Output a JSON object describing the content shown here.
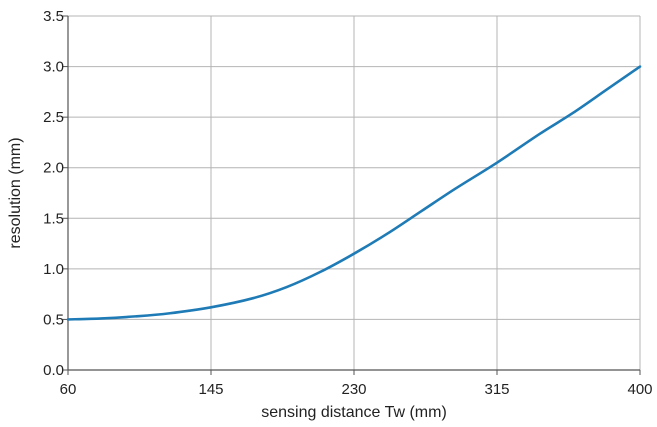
{
  "chart_data": {
    "type": "line",
    "title": "",
    "xlabel": "sensing distance Tw (mm)",
    "ylabel": "resolution (mm)",
    "xlim": [
      60,
      400
    ],
    "ylim": [
      0,
      3.5
    ],
    "x_ticks": [
      60,
      145,
      230,
      315,
      400
    ],
    "x_tick_labels": [
      "60",
      "145",
      "230",
      "315",
      "400"
    ],
    "y_ticks": [
      0,
      0.5,
      1,
      1.5,
      2,
      2.5,
      3,
      3.5
    ],
    "y_tick_labels": [
      "0.0",
      "0.5",
      "1.0",
      "1.5",
      "2.0",
      "2.5",
      "3.0",
      "3.5"
    ],
    "grid": true,
    "legend": "none",
    "series": [
      {
        "color": "#1f7bb6",
        "x": [
          60,
          80,
          100,
          120,
          145,
          170,
          190,
          210,
          230,
          250,
          270,
          290,
          315,
          340,
          360,
          380,
          400
        ],
        "y": [
          0.5,
          0.51,
          0.53,
          0.56,
          0.62,
          0.71,
          0.82,
          0.97,
          1.15,
          1.35,
          1.57,
          1.79,
          2.05,
          2.33,
          2.54,
          2.77,
          3.0
        ]
      }
    ]
  }
}
